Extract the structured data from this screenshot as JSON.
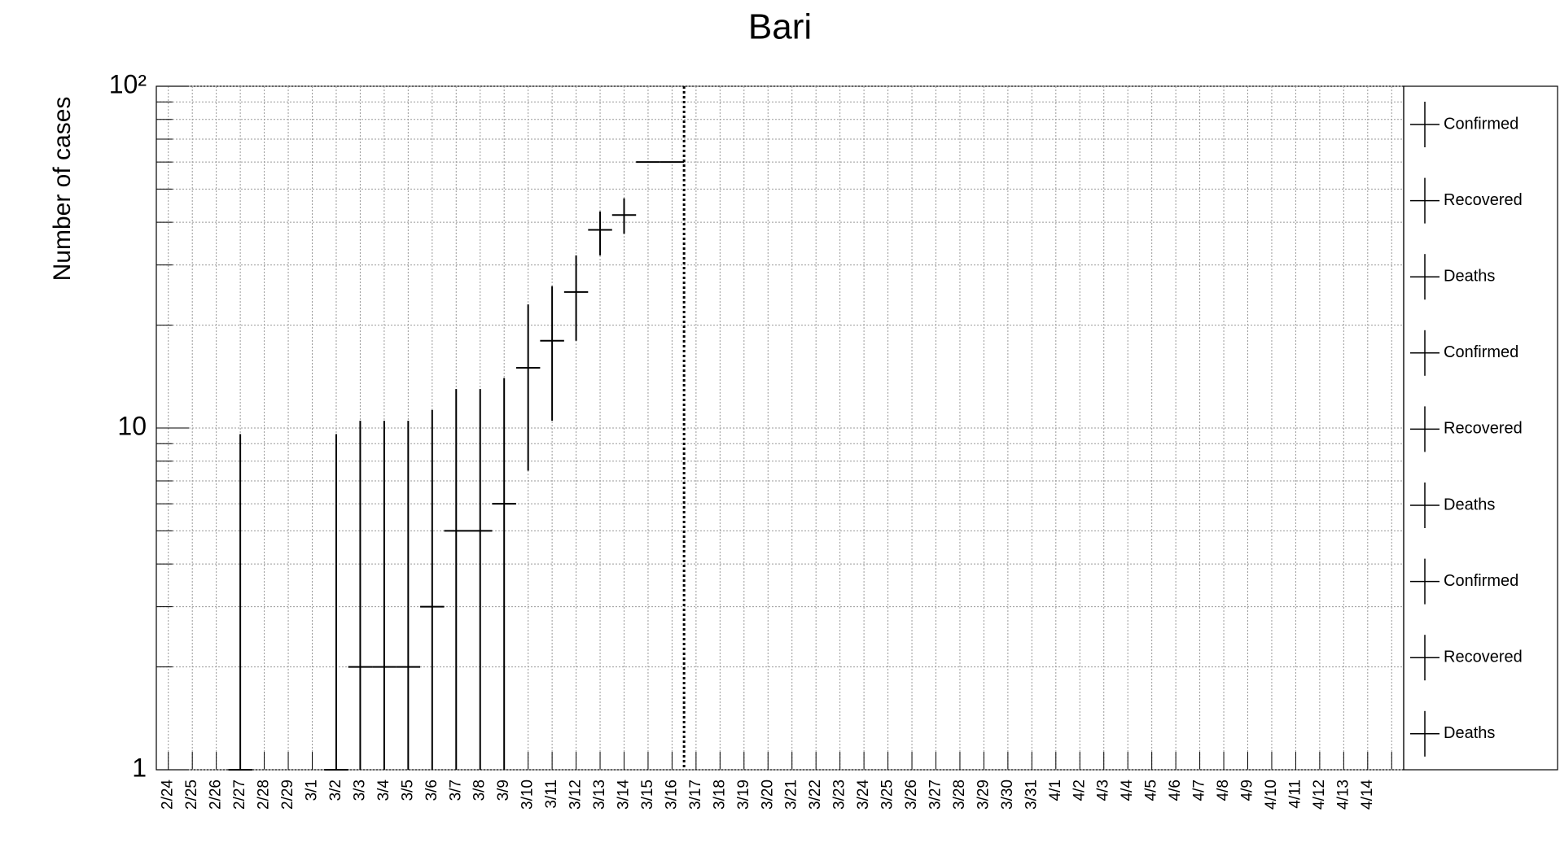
{
  "chart_data": {
    "type": "errorbar",
    "title": "Bari",
    "y_label": "Number of cases",
    "log_y": true,
    "grid": true,
    "categories": [
      "2/24",
      "2/25",
      "2/26",
      "2/27",
      "2/28",
      "2/29",
      "3/1",
      "3/2",
      "3/3",
      "3/4",
      "3/5",
      "3/6",
      "3/7",
      "3/8",
      "3/9",
      "3/10",
      "3/11",
      "3/12",
      "3/13",
      "3/14",
      "3/15",
      "3/16",
      "3/17",
      "3/18",
      "3/19",
      "3/20",
      "3/21",
      "3/22",
      "3/23",
      "3/24",
      "3/25",
      "3/26",
      "3/27",
      "3/28",
      "3/29",
      "3/30",
      "3/31",
      "4/1",
      "4/2",
      "4/3",
      "4/4",
      "4/5",
      "4/6",
      "4/7",
      "4/8",
      "4/9",
      "4/10",
      "4/11",
      "4/12",
      "4/13",
      "4/14",
      null
    ],
    "series": [
      {
        "name": "Confirmed",
        "color": "#000000",
        "values": [
          null,
          null,
          null,
          1,
          null,
          null,
          null,
          1,
          2,
          2,
          2,
          3,
          5,
          5,
          6,
          15,
          18,
          25,
          38,
          42,
          60,
          60,
          null,
          null,
          null,
          null,
          null,
          null,
          null,
          null,
          null,
          null,
          null,
          null,
          null,
          null,
          null,
          null,
          null,
          null,
          null,
          null,
          null,
          null,
          null,
          null,
          null,
          null,
          null,
          null,
          null,
          null
        ],
        "upper": [
          null,
          null,
          null,
          9.6,
          null,
          null,
          null,
          9.6,
          10.5,
          10.5,
          10.5,
          11.3,
          13,
          13,
          14,
          23,
          26,
          32,
          43,
          47,
          null,
          null,
          null,
          null,
          null,
          null,
          null,
          null,
          null,
          null,
          null,
          null,
          null,
          null,
          null,
          null,
          null,
          null,
          null,
          null,
          null,
          null,
          null,
          null,
          null,
          null,
          null,
          null,
          null,
          null,
          null,
          null
        ],
        "lower": [
          null,
          null,
          null,
          1,
          null,
          null,
          null,
          1,
          1,
          1,
          1,
          1,
          1,
          1,
          1,
          7.5,
          10.5,
          18,
          32,
          37,
          null,
          null,
          null,
          null,
          null,
          null,
          null,
          null,
          null,
          null,
          null,
          null,
          null,
          null,
          null,
          null,
          null,
          null,
          null,
          null,
          null,
          null,
          null,
          null,
          null,
          null,
          null,
          null,
          null,
          null,
          null,
          null
        ]
      }
    ],
    "legend": [
      "Confirmed",
      "Recovered",
      "Deaths",
      "Confirmed",
      "Recovered",
      "Deaths",
      "Confirmed",
      "Recovered",
      "Deaths"
    ],
    "ylim": [
      1,
      100
    ],
    "yticks": [
      1,
      10,
      {
        "value": 100,
        "label": "10²"
      }
    ]
  }
}
